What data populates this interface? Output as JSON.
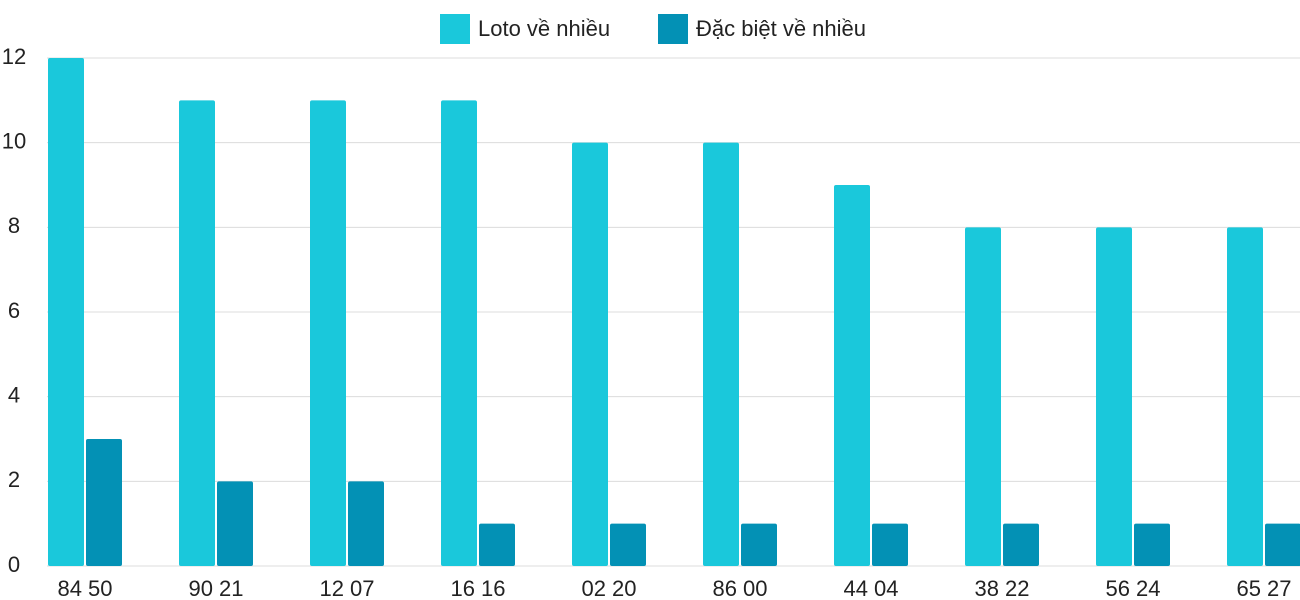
{
  "chart_data": {
    "type": "bar",
    "categories": [
      "84 50",
      "90 21",
      "12 07",
      "16 16",
      "02 20",
      "86 00",
      "44 04",
      "38 22",
      "56 24",
      "65 27"
    ],
    "series": [
      {
        "name": "Loto về nhiều",
        "color": "#1ac8db",
        "values": [
          12,
          11,
          11,
          11,
          10,
          10,
          9,
          8,
          8,
          8
        ]
      },
      {
        "name": "Đặc biệt về nhiều",
        "color": "#0391b5",
        "values": [
          3,
          2,
          2,
          1,
          1,
          1,
          1,
          1,
          1,
          1
        ]
      }
    ],
    "ylim": [
      0,
      12
    ],
    "yticks": [
      0,
      2,
      4,
      6,
      8,
      10,
      12
    ],
    "grid": true,
    "legend": "top"
  }
}
